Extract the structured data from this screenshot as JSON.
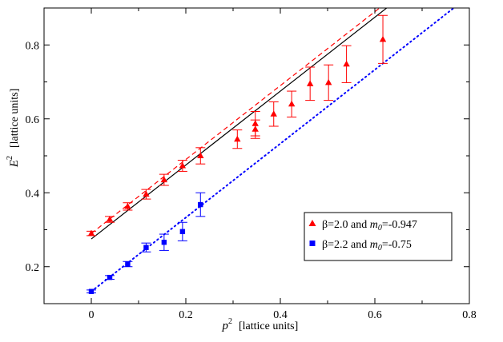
{
  "chart_data": {
    "type": "scatter",
    "xlabel": "p",
    "xlabel_sup": "2",
    "xlabel_units": "[lattice units]",
    "ylabel": "E",
    "ylabel_sup": "2",
    "ylabel_units": "[lattice units]",
    "xlim": [
      -0.1,
      0.8
    ],
    "ylim": [
      0.1,
      0.9
    ],
    "x_ticks": [
      0,
      0.2,
      0.4,
      0.6,
      0.8
    ],
    "x_tick_labels": [
      "0",
      "0.2",
      "0.4",
      "0.6",
      "0.8"
    ],
    "y_ticks": [
      0.2,
      0.4,
      0.6,
      0.8
    ],
    "y_tick_labels": [
      "0.2",
      "0.4",
      "0.6",
      "0.8"
    ],
    "legend_position": "lower-right",
    "series": [
      {
        "name": "beta-2.0",
        "legend_prefix": "β=2.0 and ",
        "legend_mass_symbol": "m",
        "legend_mass_sub": "0",
        "legend_suffix": "=-0.947",
        "marker": "triangle",
        "color": "#ff0000",
        "points": [
          {
            "x": 0.0,
            "y": 0.29,
            "err": 0.006
          },
          {
            "x": 0.039,
            "y": 0.328,
            "err": 0.008
          },
          {
            "x": 0.077,
            "y": 0.363,
            "err": 0.01
          },
          {
            "x": 0.116,
            "y": 0.396,
            "err": 0.013
          },
          {
            "x": 0.154,
            "y": 0.435,
            "err": 0.015
          },
          {
            "x": 0.193,
            "y": 0.473,
            "err": 0.015
          },
          {
            "x": 0.231,
            "y": 0.5,
            "err": 0.022
          },
          {
            "x": 0.309,
            "y": 0.545,
            "err": 0.025
          },
          {
            "x": 0.347,
            "y": 0.572,
            "err": 0.025
          },
          {
            "x": 0.347,
            "y": 0.587,
            "err": 0.033
          },
          {
            "x": 0.386,
            "y": 0.613,
            "err": 0.033
          },
          {
            "x": 0.424,
            "y": 0.64,
            "err": 0.035
          },
          {
            "x": 0.463,
            "y": 0.695,
            "err": 0.045
          },
          {
            "x": 0.502,
            "y": 0.698,
            "err": 0.048
          },
          {
            "x": 0.54,
            "y": 0.748,
            "err": 0.05
          },
          {
            "x": 0.617,
            "y": 0.815,
            "err": 0.065
          }
        ]
      },
      {
        "name": "beta-2.2",
        "legend_prefix": "β=2.2 and ",
        "legend_mass_symbol": "m",
        "legend_mass_sub": "0",
        "legend_suffix": "=-0.75",
        "marker": "square",
        "color": "#0000ff",
        "points": [
          {
            "x": 0.0,
            "y": 0.133,
            "err": 0.004
          },
          {
            "x": 0.039,
            "y": 0.171,
            "err": 0.005
          },
          {
            "x": 0.077,
            "y": 0.207,
            "err": 0.007
          },
          {
            "x": 0.116,
            "y": 0.252,
            "err": 0.012
          },
          {
            "x": 0.154,
            "y": 0.266,
            "err": 0.022
          },
          {
            "x": 0.193,
            "y": 0.295,
            "err": 0.025
          },
          {
            "x": 0.231,
            "y": 0.368,
            "err": 0.032
          }
        ]
      }
    ],
    "lines": [
      {
        "name": "fit-solid-black",
        "color": "#000000",
        "style": "solid",
        "intercept": 0.275,
        "slope": 1.0
      },
      {
        "name": "fit-dashed-red",
        "color": "#ff0000",
        "style": "dashed",
        "intercept": 0.29,
        "slope": 1.0
      },
      {
        "name": "fit-dotted-blue",
        "color": "#0000ff",
        "style": "dotted",
        "intercept": 0.133,
        "slope": 1.0
      }
    ]
  }
}
